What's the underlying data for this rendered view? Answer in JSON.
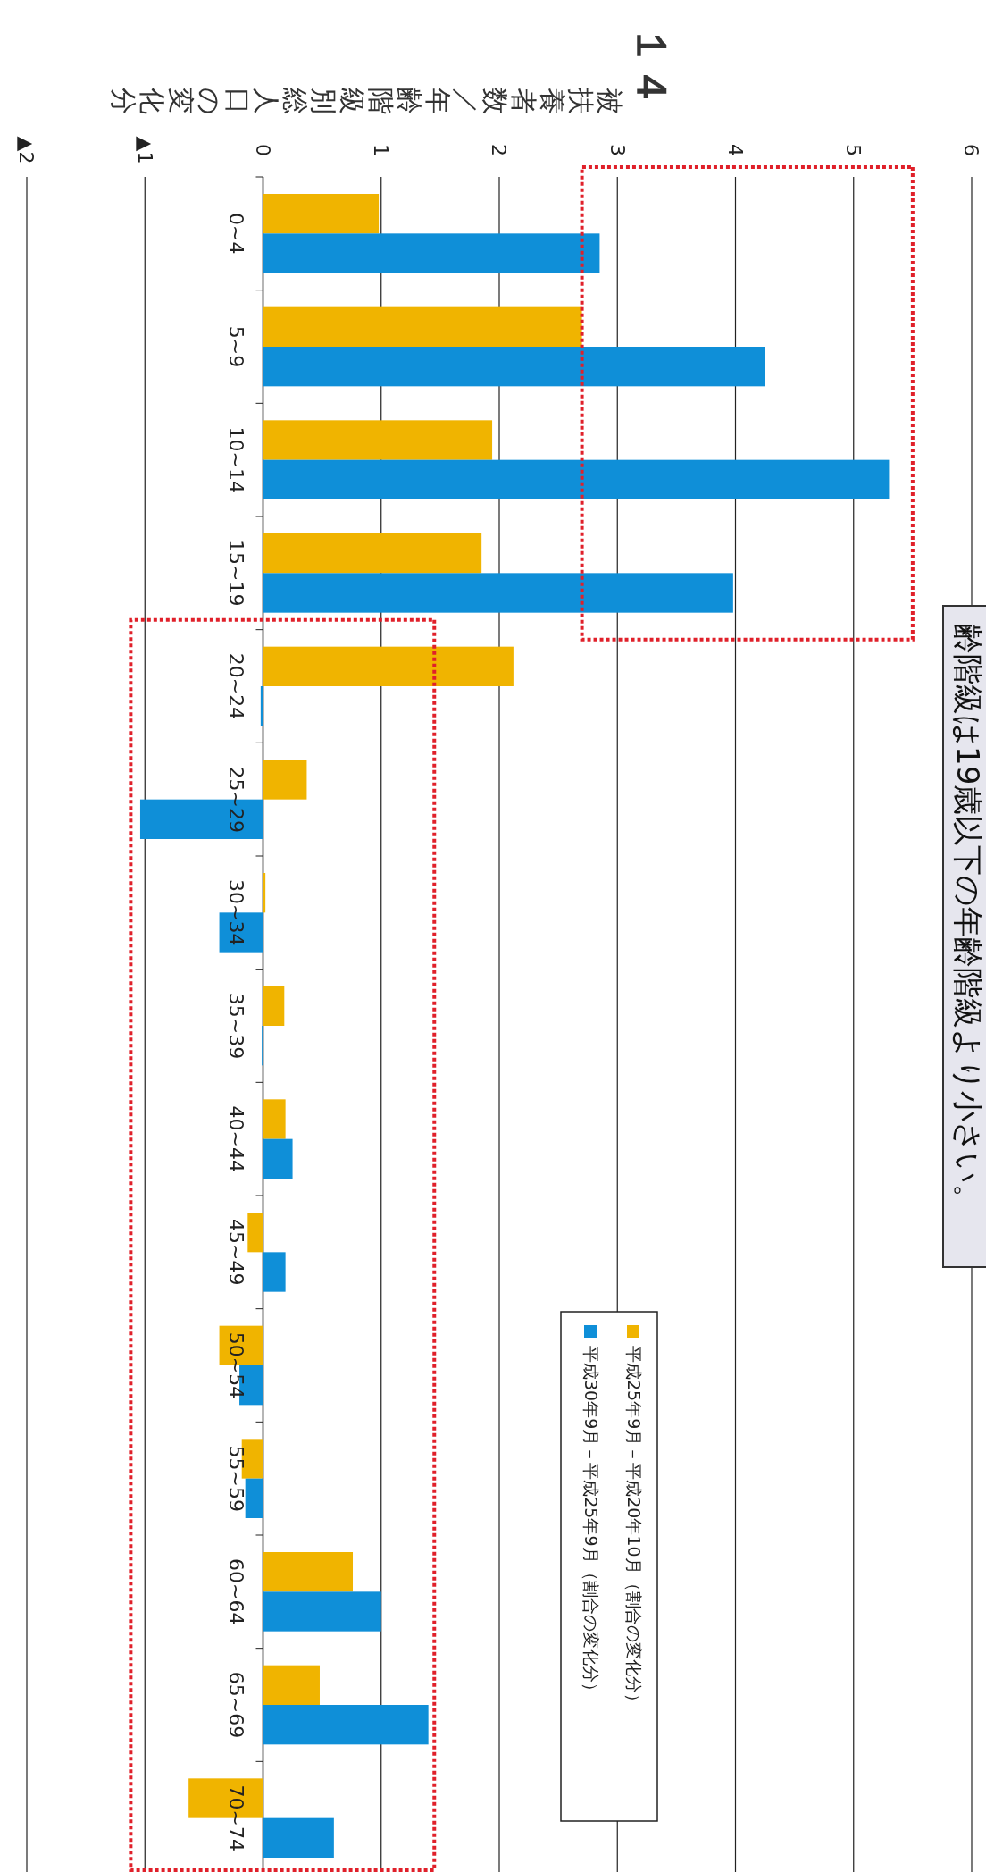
{
  "chart_data": {
    "type": "bar",
    "orientation": "horizontal",
    "title": "齢階級は19歳以下の年齢階級より小さい。",
    "xlabel": "被扶養者数／年齢階級別総人口の変化分",
    "annotations": [
      "１４"
    ],
    "categories": [
      "0~4",
      "5~9",
      "10~14",
      "15~19",
      "20~24",
      "25~29",
      "30~34",
      "35~39",
      "40~44",
      "45~49",
      "50~54",
      "55~59",
      "60~64",
      "65~69",
      "70~74"
    ],
    "series": [
      {
        "name": "平成25年9月－平成20年10月（割合の変化分）",
        "color": "#f0b400",
        "values": [
          0.98,
          2.7,
          1.94,
          1.85,
          2.12,
          0.37,
          0.02,
          0.18,
          0.19,
          -0.13,
          -0.37,
          -0.18,
          0.76,
          0.48,
          -0.63
        ]
      },
      {
        "name": "平成30年9月－平成25年9月（割合の変化分）",
        "color": "#0f8fd8",
        "values": [
          2.85,
          4.25,
          5.3,
          3.98,
          -0.02,
          -1.04,
          -0.37,
          -0.01,
          0.25,
          0.19,
          -0.2,
          -0.15,
          1.0,
          1.4,
          0.6
        ]
      }
    ],
    "xlim": [
      -2,
      6
    ],
    "xticks": [
      {
        "value": -2,
        "label": "▲2"
      },
      {
        "value": -1,
        "label": "▲1"
      },
      0,
      1,
      2,
      3,
      4,
      5,
      6
    ],
    "grid": "x",
    "legend": "right"
  }
}
